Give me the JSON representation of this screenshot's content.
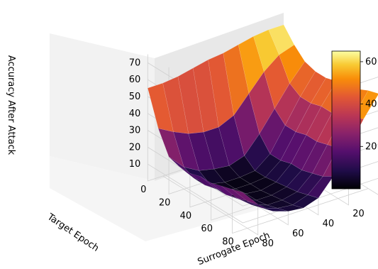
{
  "chart_data": {
    "type": "surface3d",
    "title": "",
    "xlabel": "Surrogate Epoch",
    "ylabel": "Target Epoch",
    "zlabel": "Accuracy After Attack",
    "xlim": [
      0,
      90
    ],
    "ylim": [
      0,
      90
    ],
    "zlim": [
      0,
      75
    ],
    "x_ticks": [
      0,
      20,
      40,
      60,
      80
    ],
    "y_ticks": [
      0,
      20,
      40,
      60,
      80
    ],
    "z_ticks": [
      10,
      20,
      30,
      40,
      50,
      60,
      70
    ],
    "colormap": "inferno",
    "grid": true,
    "colorbar": {
      "ticks": [
        20,
        40,
        60
      ],
      "range": [
        0,
        65
      ]
    },
    "x": [
      0,
      10,
      20,
      30,
      40,
      50,
      60,
      70,
      80,
      90
    ],
    "y": [
      0,
      10,
      20,
      30,
      40,
      50,
      60,
      70,
      80,
      90
    ],
    "z": [
      [
        66,
        66,
        65,
        63,
        61,
        60,
        58,
        56,
        55,
        55
      ],
      [
        58,
        55,
        48,
        38,
        28,
        24,
        24,
        26,
        30,
        35
      ],
      [
        52,
        42,
        30,
        18,
        8,
        5,
        6,
        8,
        13,
        22
      ],
      [
        50,
        38,
        24,
        10,
        3,
        2,
        2,
        4,
        10,
        20
      ],
      [
        50,
        38,
        24,
        10,
        3,
        2,
        2,
        4,
        10,
        20
      ],
      [
        52,
        40,
        26,
        12,
        4,
        2,
        3,
        5,
        12,
        22
      ],
      [
        52,
        40,
        26,
        12,
        5,
        3,
        3,
        6,
        12,
        22
      ],
      [
        55,
        42,
        28,
        14,
        6,
        4,
        4,
        7,
        14,
        24
      ],
      [
        58,
        45,
        30,
        16,
        8,
        5,
        6,
        9,
        16,
        26
      ],
      [
        60,
        48,
        34,
        20,
        10,
        7,
        8,
        11,
        18,
        28
      ]
    ]
  }
}
